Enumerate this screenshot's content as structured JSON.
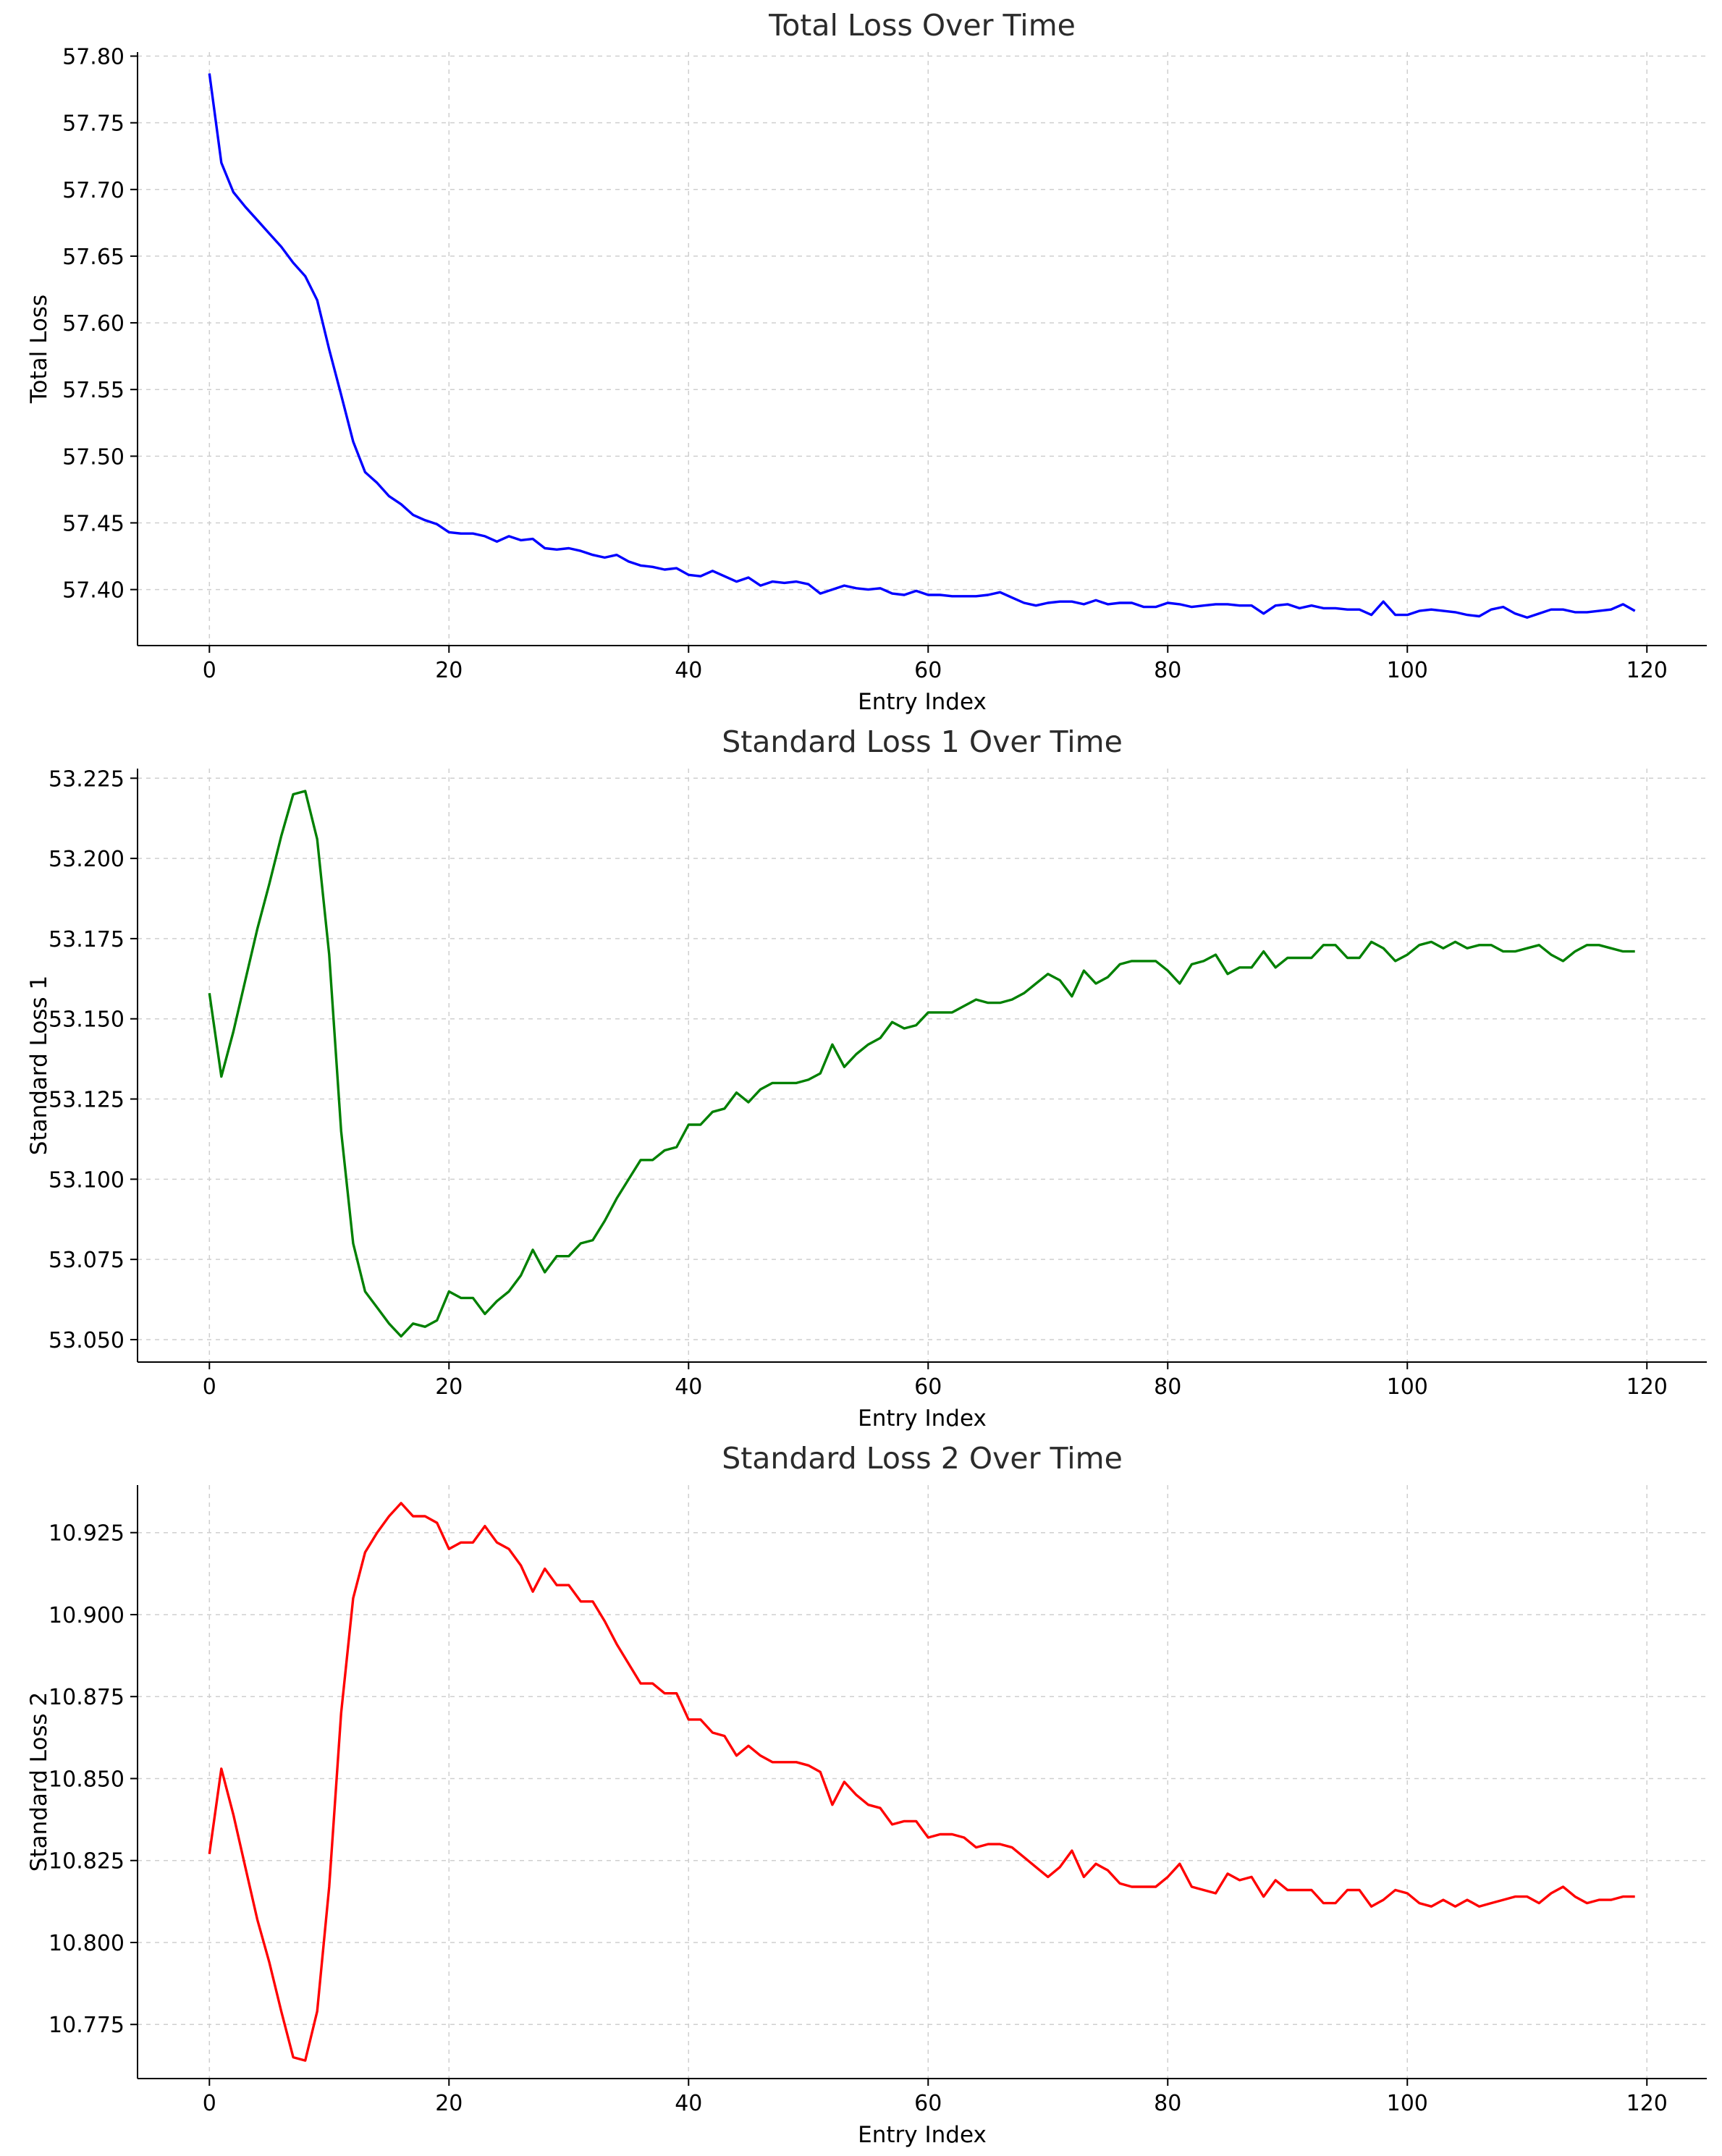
{
  "chart_data": [
    {
      "type": "line",
      "title": "Total Loss Over Time",
      "xlabel": "Entry Index",
      "ylabel": "Total Loss",
      "xlim": [
        -6,
        125
      ],
      "ylim": [
        57.358,
        57.803
      ],
      "xticks": [
        0,
        20,
        40,
        60,
        80,
        100,
        120
      ],
      "yticks": [
        57.4,
        57.45,
        57.5,
        57.55,
        57.6,
        57.65,
        57.7,
        57.75,
        57.8
      ],
      "ytick_labels": [
        "57.40",
        "57.45",
        "57.50",
        "57.55",
        "57.60",
        "57.65",
        "57.70",
        "57.75",
        "57.80"
      ],
      "grid": true,
      "series": [
        {
          "color": "#0000ff",
          "x_start": 0,
          "values": [
            57.787,
            57.72,
            57.698,
            57.687,
            57.677,
            57.667,
            57.657,
            57.645,
            57.635,
            57.617,
            57.58,
            57.546,
            57.511,
            57.488,
            57.48,
            57.47,
            57.464,
            57.456,
            57.452,
            57.449,
            57.443,
            57.442,
            57.442,
            57.44,
            57.436,
            57.44,
            57.437,
            57.438,
            57.431,
            57.43,
            57.431,
            57.429,
            57.426,
            57.424,
            57.426,
            57.421,
            57.418,
            57.417,
            57.415,
            57.416,
            57.411,
            57.41,
            57.414,
            57.41,
            57.406,
            57.409,
            57.403,
            57.406,
            57.405,
            57.406,
            57.404,
            57.397,
            57.4,
            57.403,
            57.401,
            57.4,
            57.401,
            57.397,
            57.396,
            57.399,
            57.396,
            57.396,
            57.395,
            57.395,
            57.395,
            57.396,
            57.398,
            57.394,
            57.39,
            57.388,
            57.39,
            57.391,
            57.391,
            57.389,
            57.392,
            57.389,
            57.39,
            57.39,
            57.387,
            57.387,
            57.39,
            57.389,
            57.387,
            57.388,
            57.389,
            57.389,
            57.388,
            57.388,
            57.382,
            57.388,
            57.389,
            57.386,
            57.388,
            57.386,
            57.386,
            57.385,
            57.385,
            57.381,
            57.391,
            57.381,
            57.381,
            57.384,
            57.385,
            57.384,
            57.383,
            57.381,
            57.38,
            57.385,
            57.387,
            57.382,
            57.379,
            57.382,
            57.385,
            57.385,
            57.383,
            57.383,
            57.384,
            57.385,
            57.389,
            57.384
          ]
        }
      ]
    },
    {
      "type": "line",
      "title": "Standard Loss 1 Over Time",
      "xlabel": "Entry Index",
      "ylabel": "Standard Loss 1",
      "xlim": [
        -6,
        125
      ],
      "ylim": [
        53.043,
        53.228
      ],
      "xticks": [
        0,
        20,
        40,
        60,
        80,
        100,
        120
      ],
      "yticks": [
        53.05,
        53.075,
        53.1,
        53.125,
        53.15,
        53.175,
        53.2,
        53.225
      ],
      "ytick_labels": [
        "53.050",
        "53.075",
        "53.100",
        "53.125",
        "53.150",
        "53.175",
        "53.200",
        "53.225"
      ],
      "grid": true,
      "series": [
        {
          "color": "#008000",
          "x_start": 0,
          "values": [
            53.158,
            53.132,
            53.146,
            53.162,
            53.178,
            53.192,
            53.207,
            53.22,
            53.221,
            53.206,
            53.17,
            53.115,
            53.08,
            53.065,
            53.06,
            53.055,
            53.051,
            53.055,
            53.054,
            53.056,
            53.065,
            53.063,
            53.063,
            53.058,
            53.062,
            53.065,
            53.07,
            53.078,
            53.071,
            53.076,
            53.076,
            53.08,
            53.081,
            53.087,
            53.094,
            53.1,
            53.106,
            53.106,
            53.109,
            53.11,
            53.117,
            53.117,
            53.121,
            53.122,
            53.127,
            53.124,
            53.128,
            53.13,
            53.13,
            53.13,
            53.131,
            53.133,
            53.142,
            53.135,
            53.139,
            53.142,
            53.144,
            53.149,
            53.147,
            53.148,
            53.152,
            53.152,
            53.152,
            53.154,
            53.156,
            53.155,
            53.155,
            53.156,
            53.158,
            53.161,
            53.164,
            53.162,
            53.157,
            53.165,
            53.161,
            53.163,
            53.167,
            53.168,
            53.168,
            53.168,
            53.165,
            53.161,
            53.167,
            53.168,
            53.17,
            53.164,
            53.166,
            53.166,
            53.171,
            53.166,
            53.169,
            53.169,
            53.169,
            53.173,
            53.173,
            53.169,
            53.169,
            53.174,
            53.172,
            53.168,
            53.17,
            53.173,
            53.174,
            53.172,
            53.174,
            53.172,
            53.173,
            53.173,
            53.171,
            53.171,
            53.172,
            53.173,
            53.17,
            53.168,
            53.171,
            53.173,
            53.173,
            53.172,
            53.171,
            53.171
          ]
        }
      ]
    },
    {
      "type": "line",
      "title": "Standard Loss 2 Over Time",
      "xlabel": "Entry Index",
      "ylabel": "Standard Loss 2",
      "xlim": [
        -6,
        125
      ],
      "ylim": [
        10.7585,
        10.9395
      ],
      "xticks": [
        0,
        20,
        40,
        60,
        80,
        100,
        120
      ],
      "yticks": [
        10.775,
        10.8,
        10.825,
        10.85,
        10.875,
        10.9,
        10.925
      ],
      "ytick_labels": [
        "10.775",
        "10.800",
        "10.825",
        "10.850",
        "10.875",
        "10.900",
        "10.925"
      ],
      "grid": true,
      "series": [
        {
          "color": "#ff0000",
          "x_start": 0,
          "values": [
            10.827,
            10.853,
            10.839,
            10.823,
            10.807,
            10.794,
            10.779,
            10.765,
            10.764,
            10.779,
            10.817,
            10.87,
            10.905,
            10.919,
            10.925,
            10.93,
            10.934,
            10.93,
            10.93,
            10.928,
            10.92,
            10.922,
            10.922,
            10.927,
            10.922,
            10.92,
            10.915,
            10.907,
            10.914,
            10.909,
            10.909,
            10.904,
            10.904,
            10.898,
            10.891,
            10.885,
            10.879,
            10.879,
            10.876,
            10.876,
            10.868,
            10.868,
            10.864,
            10.863,
            10.857,
            10.86,
            10.857,
            10.855,
            10.855,
            10.855,
            10.854,
            10.852,
            10.842,
            10.849,
            10.845,
            10.842,
            10.841,
            10.836,
            10.837,
            10.837,
            10.832,
            10.833,
            10.833,
            10.832,
            10.829,
            10.83,
            10.83,
            10.829,
            10.826,
            10.823,
            10.82,
            10.823,
            10.828,
            10.82,
            10.824,
            10.822,
            10.818,
            10.817,
            10.817,
            10.817,
            10.82,
            10.824,
            10.817,
            10.816,
            10.815,
            10.821,
            10.819,
            10.82,
            10.814,
            10.819,
            10.816,
            10.816,
            10.816,
            10.812,
            10.812,
            10.816,
            10.816,
            10.811,
            10.813,
            10.816,
            10.815,
            10.812,
            10.811,
            10.813,
            10.811,
            10.813,
            10.811,
            10.812,
            10.813,
            10.814,
            10.814,
            10.812,
            10.815,
            10.817,
            10.814,
            10.812,
            10.813,
            10.813,
            10.814,
            10.814
          ]
        }
      ]
    }
  ]
}
